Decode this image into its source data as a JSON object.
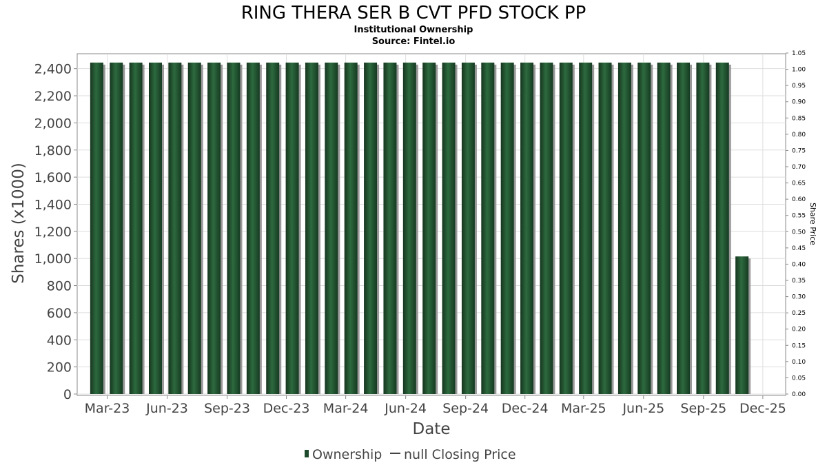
{
  "colors": {
    "bar": "#1e4a2c",
    "bar_shadow": "#999999",
    "grid": "#dddddd",
    "plot_border": "#888888"
  },
  "chart_data": {
    "type": "bar",
    "title": "RING THERA SER B CVT PFD STOCK PP",
    "subtitle": "Institutional Ownership",
    "source": "Source: Fintel.io",
    "xlabel": "Date",
    "ylabel": "Shares (x1000)",
    "y2label": "Share Price",
    "ylim": [
      0,
      2500
    ],
    "yticks": [
      0,
      200,
      400,
      600,
      800,
      1000,
      1200,
      1400,
      1600,
      1800,
      2000,
      2200,
      2400
    ],
    "ytick_labels": [
      "0",
      "200",
      "400",
      "600",
      "800",
      "1,000",
      "1,200",
      "1,400",
      "1,600",
      "1,800",
      "2,000",
      "2,200",
      "2,400"
    ],
    "y2lim": [
      0,
      1.05
    ],
    "y2ticks": [
      "0.00",
      "0.05",
      "0.10",
      "0.15",
      "0.20",
      "0.25",
      "0.30",
      "0.35",
      "0.40",
      "0.45",
      "0.50",
      "0.55",
      "0.60",
      "0.65",
      "0.70",
      "0.75",
      "0.80",
      "0.85",
      "0.90",
      "0.95",
      "1.00",
      "1.05"
    ],
    "xlim": [
      "2023-01-14",
      "2026-01-05"
    ],
    "xticks": [
      {
        "date": "2023-03-01",
        "label": "Mar-23"
      },
      {
        "date": "2023-06-01",
        "label": "Jun-23"
      },
      {
        "date": "2023-09-01",
        "label": "Sep-23"
      },
      {
        "date": "2023-12-01",
        "label": "Dec-23"
      },
      {
        "date": "2024-03-01",
        "label": "Mar-24"
      },
      {
        "date": "2024-06-01",
        "label": "Jun-24"
      },
      {
        "date": "2024-09-01",
        "label": "Sep-24"
      },
      {
        "date": "2024-12-01",
        "label": "Dec-24"
      },
      {
        "date": "2025-03-01",
        "label": "Mar-25"
      },
      {
        "date": "2025-06-01",
        "label": "Jun-25"
      },
      {
        "date": "2025-09-01",
        "label": "Sep-25"
      },
      {
        "date": "2025-12-01",
        "label": "Dec-25"
      }
    ],
    "series": [
      {
        "name": "Ownership",
        "dates": [
          "2023-02-13",
          "2023-03-15",
          "2023-04-14",
          "2023-05-14",
          "2023-06-13",
          "2023-07-13",
          "2023-08-12",
          "2023-09-11",
          "2023-10-11",
          "2023-11-10",
          "2023-12-10",
          "2024-01-09",
          "2024-02-08",
          "2024-03-09",
          "2024-04-08",
          "2024-05-08",
          "2024-06-07",
          "2024-07-07",
          "2024-08-06",
          "2024-09-05",
          "2024-10-05",
          "2024-11-04",
          "2024-12-04",
          "2025-01-03",
          "2025-02-02",
          "2025-03-04",
          "2025-04-03",
          "2025-05-03",
          "2025-06-02",
          "2025-07-02",
          "2025-08-01",
          "2025-08-31",
          "2025-09-30",
          "2025-10-30"
        ],
        "values": [
          2445,
          2445,
          2445,
          2445,
          2445,
          2445,
          2445,
          2445,
          2445,
          2445,
          2445,
          2445,
          2445,
          2445,
          2445,
          2445,
          2445,
          2445,
          2445,
          2445,
          2445,
          2445,
          2445,
          2445,
          2445,
          2445,
          2445,
          2445,
          2445,
          2445,
          2445,
          2445,
          2445,
          1015
        ]
      }
    ],
    "legend": [
      {
        "label": "Ownership",
        "kind": "bar"
      },
      {
        "label": "null Closing Price",
        "kind": "line"
      }
    ],
    "legend_position": "bottom-center",
    "grid": true
  }
}
